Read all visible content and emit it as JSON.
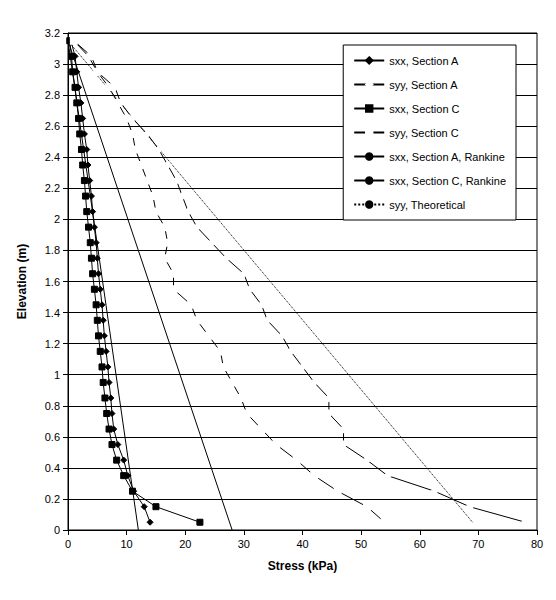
{
  "chart_data": {
    "type": "line",
    "x_label": "Stress (kPa)",
    "y_label": "Elevation (m)",
    "xlim": [
      0,
      80
    ],
    "xticks": [
      0,
      10,
      20,
      30,
      40,
      50,
      60,
      70,
      80
    ],
    "ylim": [
      0,
      3.2
    ],
    "yticks": [
      0,
      0.2,
      0.4,
      0.6,
      0.8,
      1,
      1.2,
      1.4,
      1.6,
      1.8,
      2,
      2.2,
      2.4,
      2.6,
      2.8,
      3,
      3.2
    ],
    "grid": "y",
    "legend": "top-right",
    "series": [
      {
        "name": "sxx, Section A",
        "color": "#000000",
        "marker": "diamond",
        "line_style": "solid",
        "x": [
          0.5,
          1.2,
          1.5,
          1.8,
          2.2,
          2.5,
          2.8,
          3.2,
          3.4,
          3.7,
          4.0,
          4.2,
          4.5,
          4.8,
          5.0,
          5.2,
          5.5,
          5.8,
          6.0,
          6.2,
          6.5,
          6.8,
          7.0,
          7.3,
          7.5,
          7.8,
          8.5,
          9.5,
          10.2,
          11.2,
          13,
          14
        ],
        "y": [
          3.15,
          3.05,
          2.95,
          2.85,
          2.75,
          2.65,
          2.55,
          2.45,
          2.35,
          2.25,
          2.15,
          2.05,
          1.95,
          1.85,
          1.75,
          1.65,
          1.55,
          1.45,
          1.35,
          1.25,
          1.15,
          1.05,
          0.95,
          0.85,
          0.75,
          0.65,
          0.55,
          0.45,
          0.35,
          0.25,
          0.15,
          0.05
        ]
      },
      {
        "name": "syy, Section A",
        "color": "#000000",
        "marker": "open_diamond",
        "line_style": "solid",
        "x": [
          1,
          3.5,
          5,
          8,
          9,
          11,
          13.5,
          15.5,
          17,
          18.5,
          19.5,
          20.5,
          22,
          24.5,
          27,
          30,
          31,
          33,
          34,
          36.5,
          38,
          40,
          42,
          44.5,
          44.5,
          47,
          47,
          51,
          54.5,
          62.5,
          68.5,
          78
        ],
        "y": [
          3.15,
          3.05,
          2.95,
          2.85,
          2.75,
          2.65,
          2.55,
          2.45,
          2.35,
          2.25,
          2.15,
          2.05,
          1.95,
          1.85,
          1.75,
          1.65,
          1.55,
          1.45,
          1.35,
          1.25,
          1.15,
          1.05,
          0.95,
          0.85,
          0.75,
          0.65,
          0.55,
          0.45,
          0.35,
          0.25,
          0.15,
          0.05
        ]
      },
      {
        "name": "sxx, Section C",
        "color": "#000000",
        "marker": "square",
        "line_style": "solid",
        "x": [
          0.3,
          0.6,
          0.8,
          1.2,
          1.5,
          1.8,
          2.0,
          2.3,
          2.5,
          2.8,
          3.0,
          3.2,
          3.5,
          3.8,
          4.0,
          4.2,
          4.5,
          4.8,
          5.0,
          5.2,
          5.5,
          5.8,
          6.0,
          6.3,
          6.6,
          7.0,
          7.5,
          8.3,
          9.5,
          11,
          15,
          22.5
        ],
        "y": [
          3.15,
          3.05,
          2.95,
          2.85,
          2.75,
          2.65,
          2.55,
          2.45,
          2.35,
          2.25,
          2.15,
          2.05,
          1.95,
          1.85,
          1.75,
          1.65,
          1.55,
          1.45,
          1.35,
          1.25,
          1.15,
          1.05,
          0.95,
          0.85,
          0.75,
          0.65,
          0.55,
          0.45,
          0.35,
          0.25,
          0.15,
          0.05
        ]
      },
      {
        "name": "syy, Section C",
        "color": "#000000",
        "marker": "open_square",
        "line_style": "solid",
        "x": [
          1,
          4,
          5,
          7,
          8.5,
          10,
          11,
          11.5,
          12.5,
          13.5,
          14.5,
          15,
          16.5,
          17,
          16.5,
          18,
          18,
          21,
          22,
          24,
          26,
          26.5,
          28,
          29.5,
          30.5,
          33,
          35.5,
          39,
          42,
          46,
          51,
          54
        ],
        "y": [
          3.15,
          3.05,
          2.95,
          2.85,
          2.75,
          2.65,
          2.55,
          2.45,
          2.35,
          2.25,
          2.15,
          2.05,
          1.95,
          1.85,
          1.75,
          1.65,
          1.55,
          1.45,
          1.35,
          1.25,
          1.15,
          1.05,
          0.95,
          0.85,
          0.75,
          0.65,
          0.55,
          0.45,
          0.35,
          0.25,
          0.15,
          0.05
        ]
      },
      {
        "name": "sxx, Section A, Rankine",
        "color": "#000000",
        "marker": "none",
        "line_style": "solid",
        "x": [
          0,
          12
        ],
        "y": [
          3.15,
          0
        ]
      },
      {
        "name": "sxx, Section C, Rankine",
        "color": "#000000",
        "marker": "none",
        "line_style": "solid",
        "x": [
          0,
          28
        ],
        "y": [
          3.15,
          0
        ]
      },
      {
        "name": "syy, Theoretical",
        "color": "#000000",
        "marker": "none",
        "line_style": "dotted",
        "x": [
          0,
          69
        ],
        "y": [
          3.15,
          0.05
        ]
      }
    ]
  }
}
